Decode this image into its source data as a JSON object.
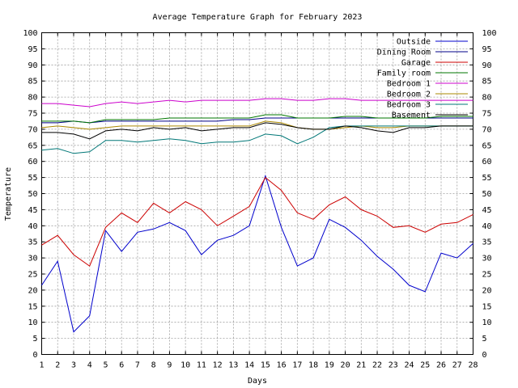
{
  "chart_data": {
    "type": "line",
    "title": "Average Temperature Graph for February 2023",
    "xlabel": "Days",
    "ylabel": "Temperature",
    "xlim": [
      1,
      28
    ],
    "ylim": [
      0,
      100
    ],
    "x_ticks": [
      1,
      2,
      3,
      4,
      5,
      6,
      7,
      8,
      9,
      10,
      11,
      12,
      13,
      14,
      15,
      16,
      17,
      18,
      19,
      20,
      21,
      22,
      23,
      24,
      25,
      26,
      27,
      28
    ],
    "y_ticks": [
      0,
      5,
      10,
      15,
      20,
      25,
      30,
      35,
      40,
      45,
      50,
      55,
      60,
      65,
      70,
      75,
      80,
      85,
      90,
      95,
      100
    ],
    "y_ticks_mirrored_right": true,
    "grid": true,
    "legend_position": "top-right",
    "x": [
      1,
      2,
      3,
      4,
      5,
      6,
      7,
      8,
      9,
      10,
      11,
      12,
      13,
      14,
      15,
      16,
      17,
      18,
      19,
      20,
      21,
      22,
      23,
      24,
      25,
      26,
      27,
      28
    ],
    "series": [
      {
        "name": "Outside",
        "color": "#0000cc",
        "values": [
          21.5,
          29,
          7,
          12,
          38.5,
          32,
          38,
          39,
          41,
          38.5,
          31,
          35.5,
          37,
          40,
          55.5,
          39.5,
          27.5,
          30,
          42,
          39.5,
          35.5,
          30.5,
          26.5,
          21.5,
          19.5,
          31.5,
          30,
          34.5
        ]
      },
      {
        "name": "Dining Room",
        "color": "#000088",
        "values": [
          72,
          72,
          72.5,
          72,
          72.5,
          72.5,
          72.5,
          72.5,
          72.5,
          72.5,
          72.5,
          72.5,
          73,
          73,
          73.5,
          73.5,
          73.5,
          73.5,
          73.5,
          73.5,
          73.5,
          73.5,
          73.5,
          73.5,
          73.5,
          73.5,
          73.5,
          73.5
        ]
      },
      {
        "name": "Garage",
        "color": "#cc0000",
        "values": [
          34,
          37,
          31,
          27.5,
          39.5,
          44,
          41,
          47,
          44,
          47.5,
          45,
          40,
          43,
          46,
          55,
          51,
          44,
          42,
          46.5,
          49,
          45,
          43,
          39.5,
          40,
          38,
          40.5,
          41,
          43.5
        ]
      },
      {
        "name": "Family room",
        "color": "#007700",
        "values": [
          72.5,
          72.5,
          72.5,
          72,
          73,
          73,
          73,
          73,
          73.5,
          73.5,
          73.5,
          73.5,
          73.5,
          73.5,
          74.5,
          74.5,
          73.5,
          73.5,
          73.5,
          74,
          74,
          73.5,
          73.5,
          73.5,
          73.5,
          74,
          74,
          74
        ]
      },
      {
        "name": "Bedroom 1",
        "color": "#cc00cc",
        "values": [
          78,
          78,
          77.5,
          77,
          78,
          78.5,
          78,
          78.5,
          79,
          78.5,
          79,
          79,
          79,
          79,
          79.5,
          79.5,
          79,
          79,
          79.5,
          79.5,
          79,
          79,
          79,
          79,
          79,
          79,
          79,
          79
        ]
      },
      {
        "name": "Bedroom 2",
        "color": "#aa8800",
        "values": [
          70.5,
          71,
          70.5,
          70,
          70.5,
          71,
          71,
          71,
          71,
          71,
          71,
          71,
          71,
          71,
          72.5,
          72,
          70.5,
          70,
          70,
          70.5,
          71,
          70.5,
          70.5,
          71,
          71,
          71,
          71,
          71
        ]
      },
      {
        "name": "Bedroom 3",
        "color": "#007777",
        "values": [
          63.5,
          64,
          62.5,
          63,
          66.5,
          66.5,
          66,
          66.5,
          67,
          66.5,
          65.5,
          66,
          66,
          66.5,
          68.5,
          68,
          65.5,
          67.5,
          70.5,
          71,
          71,
          71,
          71,
          71,
          71,
          71,
          71,
          71
        ]
      },
      {
        "name": "Basement",
        "color": "#000000",
        "values": [
          69,
          69,
          68.5,
          67,
          69.5,
          70,
          69.5,
          70.5,
          70,
          70.5,
          69.5,
          70,
          70.5,
          70.5,
          72,
          71.5,
          70.5,
          70,
          70,
          71,
          70.5,
          69.5,
          69,
          70.5,
          70.5,
          71,
          71,
          71
        ]
      }
    ]
  }
}
